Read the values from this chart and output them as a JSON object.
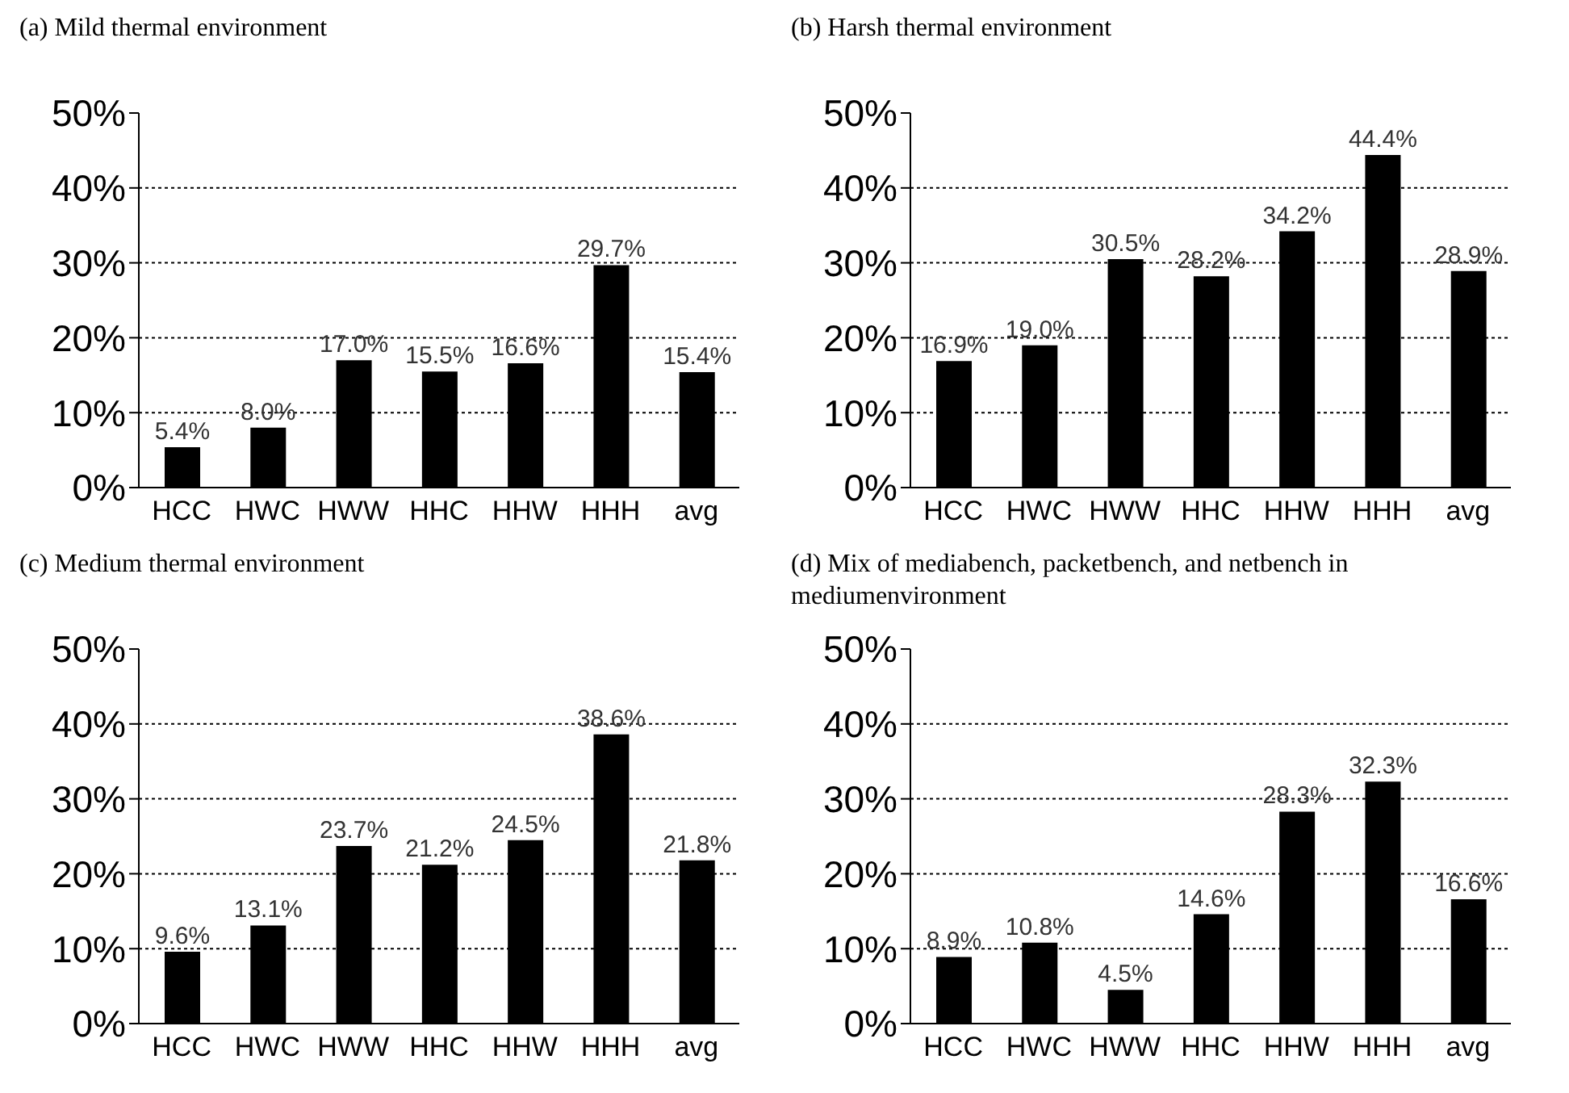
{
  "chart_data": [
    {
      "type": "bar",
      "title": "(a) Mild thermal environment",
      "categories": [
        "HCC",
        "HWC",
        "HWW",
        "HHC",
        "HHW",
        "HHH",
        "avg"
      ],
      "values": [
        5.4,
        8.0,
        17.0,
        15.5,
        16.6,
        29.7,
        15.4
      ],
      "value_labels": [
        "5.4%",
        "8.0%",
        "17.0%",
        "15.5%",
        "16.6%",
        "29.7%",
        "15.4%"
      ],
      "color": "#000000",
      "ylim": [
        0,
        50
      ],
      "yticks": [
        {
          "value": 0,
          "label": "0%"
        },
        {
          "value": 10,
          "label": "10%"
        },
        {
          "value": 20,
          "label": "20%"
        },
        {
          "value": 30,
          "label": "30%"
        },
        {
          "value": 40,
          "label": "40%"
        },
        {
          "value": 50,
          "label": "50%"
        }
      ],
      "grid": "y",
      "legend": false
    },
    {
      "type": "bar",
      "title": "(b) Harsh thermal environment",
      "categories": [
        "HCC",
        "HWC",
        "HWW",
        "HHC",
        "HHW",
        "HHH",
        "avg"
      ],
      "values": [
        16.9,
        19.0,
        30.5,
        28.2,
        34.2,
        44.4,
        28.9
      ],
      "value_labels": [
        "16.9%",
        "19.0%",
        "30.5%",
        "28.2%",
        "34.2%",
        "44.4%",
        "28.9%"
      ],
      "color": "#000000",
      "ylim": [
        0,
        50
      ],
      "yticks": [
        {
          "value": 0,
          "label": "0%"
        },
        {
          "value": 10,
          "label": "10%"
        },
        {
          "value": 20,
          "label": "20%"
        },
        {
          "value": 30,
          "label": "30%"
        },
        {
          "value": 40,
          "label": "40%"
        },
        {
          "value": 50,
          "label": "50%"
        }
      ],
      "grid": "y",
      "legend": false
    },
    {
      "type": "bar",
      "title": "(c) Medium thermal environment",
      "categories": [
        "HCC",
        "HWC",
        "HWW",
        "HHC",
        "HHW",
        "HHH",
        "avg"
      ],
      "values": [
        9.6,
        13.1,
        23.7,
        21.2,
        24.5,
        38.6,
        21.8
      ],
      "value_labels": [
        "9.6%",
        "13.1%",
        "23.7%",
        "21.2%",
        "24.5%",
        "38.6%",
        "21.8%"
      ],
      "color": "#000000",
      "ylim": [
        0,
        50
      ],
      "yticks": [
        {
          "value": 0,
          "label": "0%"
        },
        {
          "value": 10,
          "label": "10%"
        },
        {
          "value": 20,
          "label": "20%"
        },
        {
          "value": 30,
          "label": "30%"
        },
        {
          "value": 40,
          "label": "40%"
        },
        {
          "value": 50,
          "label": "50%"
        }
      ],
      "grid": "y",
      "legend": false
    },
    {
      "type": "bar",
      "title": "(d) Mix of mediabench, packetbench, and netbench in mediumenvironment",
      "categories": [
        "HCC",
        "HWC",
        "HWW",
        "HHC",
        "HHW",
        "HHH",
        "avg"
      ],
      "values": [
        8.9,
        10.8,
        4.5,
        14.6,
        28.3,
        32.3,
        16.6
      ],
      "value_labels": [
        "8.9%",
        "10.8%",
        "4.5%",
        "14.6%",
        "28.3%",
        "32.3%",
        "16.6%"
      ],
      "color": "#000000",
      "ylim": [
        0,
        50
      ],
      "yticks": [
        {
          "value": 0,
          "label": "0%"
        },
        {
          "value": 10,
          "label": "10%"
        },
        {
          "value": 20,
          "label": "20%"
        },
        {
          "value": 30,
          "label": "30%"
        },
        {
          "value": 40,
          "label": "40%"
        },
        {
          "value": 50,
          "label": "50%"
        }
      ],
      "grid": "y",
      "legend": false
    }
  ]
}
